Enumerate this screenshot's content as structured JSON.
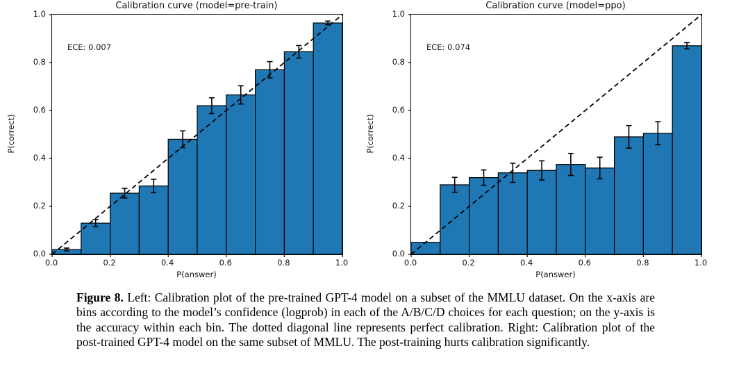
{
  "page": {
    "background": "#ffffff"
  },
  "caption": {
    "label": "Figure 8.",
    "text": " Left: Calibration plot of the pre-trained GPT-4 model on a subset of the MMLU dataset. On the x-axis are bins according to the model’s confidence (logprob) in each of the A/B/C/D choices for each question; on the y-axis is the accuracy within each bin. The dotted diagonal line represents perfect calibration. Right: Calibration plot of the post-trained GPT-4 model on the same subset of MMLU. The post-training hurts calibration significantly."
  },
  "chart_data": [
    {
      "type": "bar",
      "title": "Calibration curve (model=pre-train)",
      "annotation": "ECE: 0.007",
      "xlabel": "P(answer)",
      "ylabel": "P(correct)",
      "xlim": [
        0.0,
        1.0
      ],
      "ylim": [
        0.0,
        1.0
      ],
      "xticks": [
        "0.0",
        "0.2",
        "0.4",
        "0.6",
        "0.8",
        "1.0"
      ],
      "yticks": [
        "0.0",
        "0.2",
        "0.4",
        "0.6",
        "0.8",
        "1.0"
      ],
      "bins": {
        "start": 0.0,
        "end": 1.0,
        "count": 10,
        "width": 0.1
      },
      "values": [
        0.02,
        0.13,
        0.255,
        0.285,
        0.48,
        0.62,
        0.665,
        0.77,
        0.845,
        0.965
      ],
      "errors": [
        0.006,
        0.015,
        0.02,
        0.028,
        0.035,
        0.033,
        0.038,
        0.034,
        0.026,
        0.008
      ],
      "diagonal_reference_line": true,
      "grid": false,
      "legend": null,
      "bar_color": "#1f77b4",
      "edge_color": "#000000",
      "line_color": "#000000"
    },
    {
      "type": "bar",
      "title": "Calibration curve (model=ppo)",
      "annotation": "ECE: 0.074",
      "xlabel": "P(answer)",
      "ylabel": "P(correct)",
      "xlim": [
        0.0,
        1.0
      ],
      "ylim": [
        0.0,
        1.0
      ],
      "xticks": [
        "0.0",
        "0.2",
        "0.4",
        "0.6",
        "0.8",
        "1.0"
      ],
      "yticks": [
        "0.0",
        "0.2",
        "0.4",
        "0.6",
        "0.8",
        "1.0"
      ],
      "bins": {
        "start": 0.0,
        "end": 1.0,
        "count": 10,
        "width": 0.1
      },
      "values": [
        0.05,
        0.29,
        0.32,
        0.34,
        0.35,
        0.375,
        0.36,
        0.49,
        0.505,
        0.87
      ],
      "errors": [
        0.0,
        0.031,
        0.032,
        0.04,
        0.04,
        0.046,
        0.045,
        0.047,
        0.048,
        0.013
      ],
      "diagonal_reference_line": true,
      "grid": false,
      "legend": null,
      "bar_color": "#1f77b4",
      "edge_color": "#000000",
      "line_color": "#000000"
    }
  ]
}
